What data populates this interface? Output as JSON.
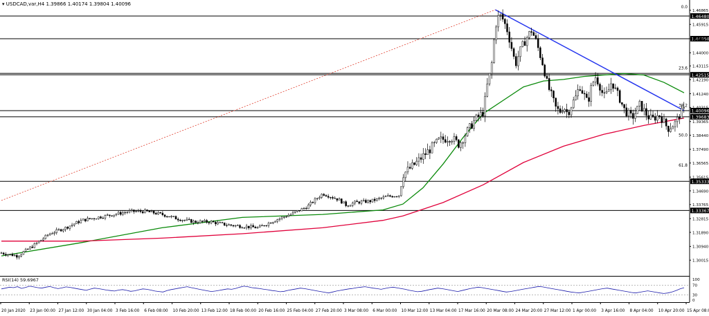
{
  "header": {
    "symbol": "USDCAD,var,H4",
    "open": "1.39866",
    "high": "1.40174",
    "low": "1.39804",
    "close": "1.40096"
  },
  "rsi_label": "RSI(14) 59.6967",
  "colors": {
    "bull_candle": "#000000",
    "bear_candle": "#000000",
    "ma_fast": "#0a8a0a",
    "ma_slow": "#e0003a",
    "trendline": "#2233ee",
    "fib_line": "#e04030",
    "rsi": "#1a1aaa",
    "hlines": "#000000"
  },
  "chart_data": [
    {
      "type": "line",
      "title": "USDCAD,var,H4",
      "ylim": [
        1.29,
        1.47
      ],
      "yticks": [
        "1.46865",
        "1.45915",
        "1.44950",
        "1.44000",
        "1.43115",
        "1.42190",
        "1.41240",
        "1.40315",
        "1.39365",
        "1.38440",
        "1.37490",
        "1.36565",
        "1.35615",
        "1.34690",
        "1.33765",
        "1.32815",
        "1.31890",
        "1.30940",
        "1.30015"
      ],
      "highlighted_levels": [
        "1.46480",
        "1.44950",
        "1.42515",
        "1.40096",
        "1.39683",
        "1.35333",
        "1.33367"
      ],
      "fib_labels": [
        {
          "label": "0.0",
          "value": 1.4693
        },
        {
          "label": "23.6",
          "value": 1.428
        },
        {
          "label": "38.2",
          "value": 1.4028
        },
        {
          "label": "50.0",
          "value": 1.3828
        },
        {
          "label": "61.8",
          "value": 1.3625
        }
      ],
      "xticks": [
        "20 Jan 2020",
        "23 Jan 00:00",
        "27 Jan 12:00",
        "30 Jan 04:00",
        "3 Feb 16:00",
        "6 Feb 08:00",
        "10 Feb 20:00",
        "13 Feb 12:00",
        "18 Feb 00:00",
        "20 Feb 16:00",
        "25 Feb 04:00",
        "27 Feb 20:00",
        "3 Mar 08:00",
        "6 Mar 00:00",
        "10 Mar 12:00",
        "13 Mar 04:00",
        "17 Mar 16:00",
        "20 Mar 08:00",
        "24 Mar 20:00",
        "27 Mar 12:00",
        "1 Apr 00:00",
        "3 Apr 16:00",
        "8 Apr 04:00",
        "10 Apr 20:00",
        "15 Apr 08:00"
      ],
      "price_path": [
        [
          0,
          1.305
        ],
        [
          4,
          1.303
        ],
        [
          8,
          1.31
        ],
        [
          12,
          1.318
        ],
        [
          16,
          1.322
        ],
        [
          20,
          1.327
        ],
        [
          24,
          1.329
        ],
        [
          28,
          1.331
        ],
        [
          32,
          1.333
        ],
        [
          36,
          1.333
        ],
        [
          40,
          1.331
        ],
        [
          44,
          1.328
        ],
        [
          48,
          1.326
        ],
        [
          52,
          1.326
        ],
        [
          56,
          1.324
        ],
        [
          60,
          1.323
        ],
        [
          64,
          1.322
        ],
        [
          68,
          1.327
        ],
        [
          72,
          1.331
        ],
        [
          76,
          1.336
        ],
        [
          80,
          1.345
        ],
        [
          84,
          1.341
        ],
        [
          86,
          1.337
        ],
        [
          88,
          1.339
        ],
        [
          92,
          1.34
        ],
        [
          96,
          1.343
        ],
        [
          99,
          1.344
        ],
        [
          100,
          1.358
        ],
        [
          103,
          1.365
        ],
        [
          106,
          1.373
        ],
        [
          109,
          1.381
        ],
        [
          112,
          1.383
        ],
        [
          114,
          1.378
        ],
        [
          116,
          1.387
        ],
        [
          118,
          1.395
        ],
        [
          120,
          1.4
        ],
        [
          121,
          1.418
        ],
        [
          122,
          1.43
        ],
        [
          123,
          1.458
        ],
        [
          124,
          1.466
        ],
        [
          125,
          1.462
        ],
        [
          126,
          1.455
        ],
        [
          127,
          1.444
        ],
        [
          128,
          1.432
        ],
        [
          129,
          1.44
        ],
        [
          130,
          1.446
        ],
        [
          131,
          1.451
        ],
        [
          132,
          1.455
        ],
        [
          133,
          1.449
        ],
        [
          134,
          1.44
        ],
        [
          135,
          1.431
        ],
        [
          136,
          1.418
        ],
        [
          137,
          1.411
        ],
        [
          138,
          1.403
        ],
        [
          139,
          1.4
        ],
        [
          140,
          1.404
        ],
        [
          141,
          1.399
        ],
        [
          142,
          1.405
        ],
        [
          143,
          1.41
        ],
        [
          144,
          1.418
        ],
        [
          145,
          1.412
        ],
        [
          146,
          1.406
        ],
        [
          147,
          1.418
        ],
        [
          148,
          1.424
        ],
        [
          149,
          1.418
        ],
        [
          150,
          1.41
        ],
        [
          151,
          1.413
        ],
        [
          152,
          1.421
        ],
        [
          153,
          1.414
        ],
        [
          154,
          1.409
        ],
        [
          155,
          1.402
        ],
        [
          156,
          1.399
        ],
        [
          157,
          1.396
        ],
        [
          158,
          1.4
        ],
        [
          159,
          1.405
        ],
        [
          160,
          1.401
        ],
        [
          161,
          1.397
        ],
        [
          162,
          1.395
        ],
        [
          163,
          1.397
        ],
        [
          164,
          1.398
        ],
        [
          165,
          1.393
        ],
        [
          166,
          1.389
        ],
        [
          167,
          1.391
        ],
        [
          168,
          1.393
        ],
        [
          169,
          1.399
        ],
        [
          170,
          1.401
        ]
      ],
      "series": [
        {
          "name": "",
          "role": "ma_fast",
          "points": [
            [
              0,
              1.303
            ],
            [
              20,
              1.312
            ],
            [
              40,
              1.322
            ],
            [
              60,
              1.329
            ],
            [
              80,
              1.331
            ],
            [
              95,
              1.334
            ],
            [
              100,
              1.338
            ],
            [
              105,
              1.349
            ],
            [
              110,
              1.365
            ],
            [
              115,
              1.383
            ],
            [
              120,
              1.399
            ],
            [
              125,
              1.408
            ],
            [
              130,
              1.417
            ],
            [
              135,
              1.421
            ],
            [
              140,
              1.422
            ],
            [
              145,
              1.424
            ],
            [
              150,
              1.425
            ],
            [
              155,
              1.426
            ],
            [
              160,
              1.425
            ],
            [
              165,
              1.42
            ],
            [
              170,
              1.413
            ]
          ]
        },
        {
          "name": "",
          "role": "ma_slow",
          "points": [
            [
              0,
              1.313
            ],
            [
              20,
              1.313
            ],
            [
              40,
              1.315
            ],
            [
              60,
              1.318
            ],
            [
              80,
              1.322
            ],
            [
              95,
              1.327
            ],
            [
              100,
              1.33
            ],
            [
              110,
              1.339
            ],
            [
              120,
              1.351
            ],
            [
              130,
              1.366
            ],
            [
              140,
              1.377
            ],
            [
              150,
              1.385
            ],
            [
              160,
              1.391
            ],
            [
              170,
              1.396
            ]
          ]
        },
        {
          "name": "",
          "role": "trendline",
          "points": [
            [
              123,
              1.469
            ],
            [
              170,
              1.401
            ]
          ]
        },
        {
          "name": "",
          "role": "fib_dotted",
          "points": [
            [
              0,
              1.3404
            ],
            [
              123,
              1.469
            ]
          ]
        }
      ],
      "xrange": [
        0,
        170
      ]
    },
    {
      "type": "line",
      "title": "RSI(14) 59.6967",
      "ylim": [
        0,
        100
      ],
      "yticks": [
        "100",
        "70",
        "30",
        "0"
      ],
      "levels": [
        70,
        30
      ],
      "values": [
        55,
        58,
        62,
        60,
        64,
        57,
        61,
        66,
        63,
        60,
        58,
        62,
        65,
        60,
        56,
        59,
        63,
        61,
        58,
        55,
        52,
        49,
        54,
        58,
        56,
        53,
        50,
        48,
        46,
        50,
        52,
        49,
        45,
        47,
        51,
        55,
        53,
        50,
        46,
        44,
        42,
        48,
        52,
        55,
        58,
        61,
        64,
        60,
        57,
        53,
        50,
        47,
        44,
        46,
        49,
        52,
        55,
        53,
        57,
        62,
        66,
        64,
        60,
        58,
        56,
        53,
        51,
        48,
        46,
        43,
        45,
        49,
        52,
        55,
        58,
        56,
        53,
        50,
        47,
        44,
        41,
        38,
        42,
        46,
        49,
        52,
        55,
        57,
        60,
        62,
        64,
        61,
        58,
        56,
        53,
        57,
        60,
        62,
        59,
        56,
        53,
        49,
        46,
        43,
        45,
        48,
        52,
        55,
        58,
        56,
        53,
        50,
        47,
        44,
        48,
        52,
        56,
        59,
        62,
        60,
        57,
        54,
        51,
        48,
        45,
        42,
        44,
        47,
        50,
        53,
        56,
        59,
        62,
        65,
        63,
        60,
        57,
        54,
        51,
        48,
        45,
        42,
        40,
        38,
        41,
        44,
        47,
        50,
        53,
        56,
        58,
        55,
        52,
        49,
        46,
        43,
        40,
        38,
        41,
        44,
        47,
        44,
        41,
        38,
        36,
        38,
        42,
        48,
        55,
        59.7
      ]
    }
  ]
}
